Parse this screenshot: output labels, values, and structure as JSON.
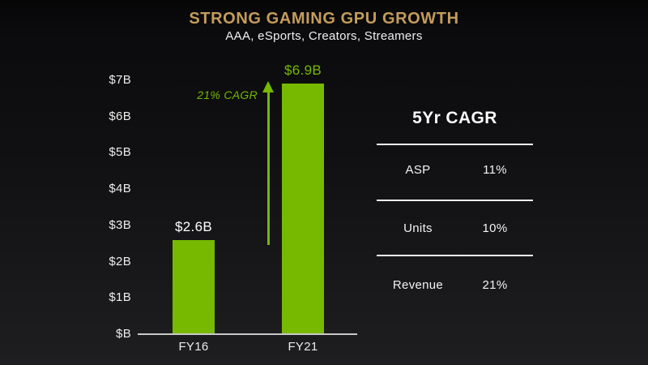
{
  "header": {
    "title": "STRONG GAMING GPU GROWTH",
    "subtitle": "AAA, eSports, Creators, Streamers"
  },
  "chart_data": {
    "type": "bar",
    "title": "STRONG GAMING GPU GROWTH",
    "xlabel": "",
    "ylabel": "",
    "categories": [
      "FY16",
      "FY21"
    ],
    "values": [
      2.6,
      6.9
    ],
    "bar_labels": [
      "$2.6B",
      "$6.9B"
    ],
    "bar_label_colors": [
      "#ffffff",
      "#76b900"
    ],
    "yticks": [
      "$7B",
      "$6B",
      "$5B",
      "$4B",
      "$3B",
      "$2B",
      "$1B",
      "$B"
    ],
    "ytick_values": [
      7,
      6,
      5,
      4,
      3,
      2,
      1,
      0
    ],
    "ylim": [
      0,
      7
    ],
    "grid": false,
    "annotation": "21% CAGR",
    "bar_color": "#76b900"
  },
  "table": {
    "title": "5Yr CAGR",
    "rows": [
      {
        "label": "ASP",
        "value": "11%"
      },
      {
        "label": "Units",
        "value": "10%"
      },
      {
        "label": "Revenue",
        "value": "21%"
      }
    ]
  },
  "colors": {
    "accent_green": "#76b900",
    "title_gold": "#c49c5c",
    "background_top": "#0b0b0d",
    "background_bottom": "#1e1e20",
    "axis_line": "#c9c9c9"
  }
}
